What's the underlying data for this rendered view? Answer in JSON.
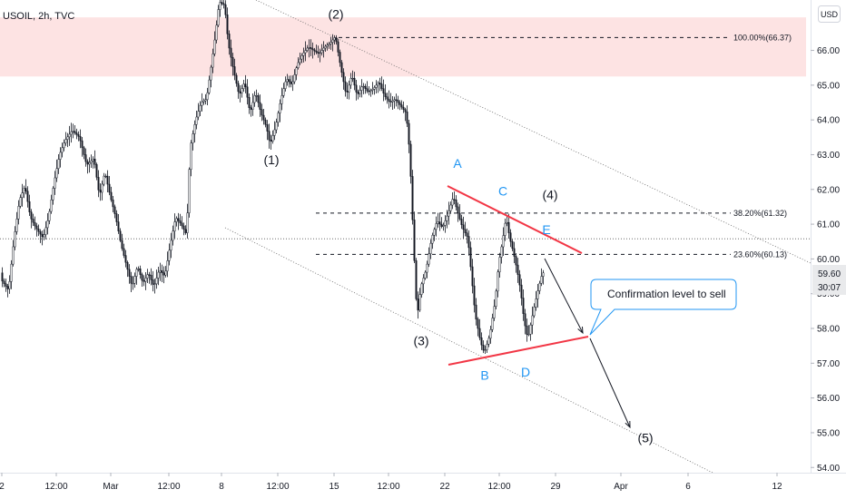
{
  "symbol_title": "USOIL, 2h, TVC",
  "currency_button": "USD",
  "chart_data": {
    "type": "candlestick",
    "title": "USOIL, 2h, TVC",
    "ylim": [
      53.85,
      67.45
    ],
    "y_ticks": [
      "66.00",
      "65.00",
      "64.00",
      "63.00",
      "62.00",
      "61.00",
      "60.00",
      "59.00",
      "58.00",
      "57.00",
      "56.00",
      "55.00",
      "54.00"
    ],
    "x_ticks": [
      "2",
      "12:00",
      "Mar",
      "12:00",
      "8",
      "12:00",
      "15",
      "12:00",
      "22",
      "12:00",
      "29",
      "Apr",
      "6",
      "12"
    ],
    "current_price": {
      "value": "59.60",
      "countdown": "30:07"
    },
    "resistance_zone": {
      "from": 65.25,
      "to": 66.95
    },
    "horizontal_reference_price": 60.58,
    "fib_levels": [
      {
        "label": "100.00%(66.37)",
        "price": 66.37
      },
      {
        "label": "38.20%(61.32)",
        "price": 61.32
      },
      {
        "label": "23.60%(60.13)",
        "price": 60.13
      }
    ],
    "wave_labels": [
      {
        "text": "(1)",
        "price": 62.85
      },
      {
        "text": "(2)",
        "price": 67.05
      },
      {
        "text": "(3)",
        "price": 57.65
      },
      {
        "text": "(4)",
        "price": 61.85
      },
      {
        "text": "(5)",
        "price": 54.85
      }
    ],
    "abc_labels": [
      {
        "text": "A",
        "price": 62.75
      },
      {
        "text": "B",
        "price": 56.65
      },
      {
        "text": "C",
        "price": 61.95
      },
      {
        "text": "D",
        "price": 56.75
      },
      {
        "text": "E",
        "price": 60.85
      }
    ],
    "annotation": "Confirmation level to sell",
    "colors": {
      "triangle_lines": "#f23645",
      "abc_labels": "#2196f3",
      "resistance_zone": "#fde3e3",
      "callout_border": "#2196f3",
      "candles": "#131722"
    }
  }
}
